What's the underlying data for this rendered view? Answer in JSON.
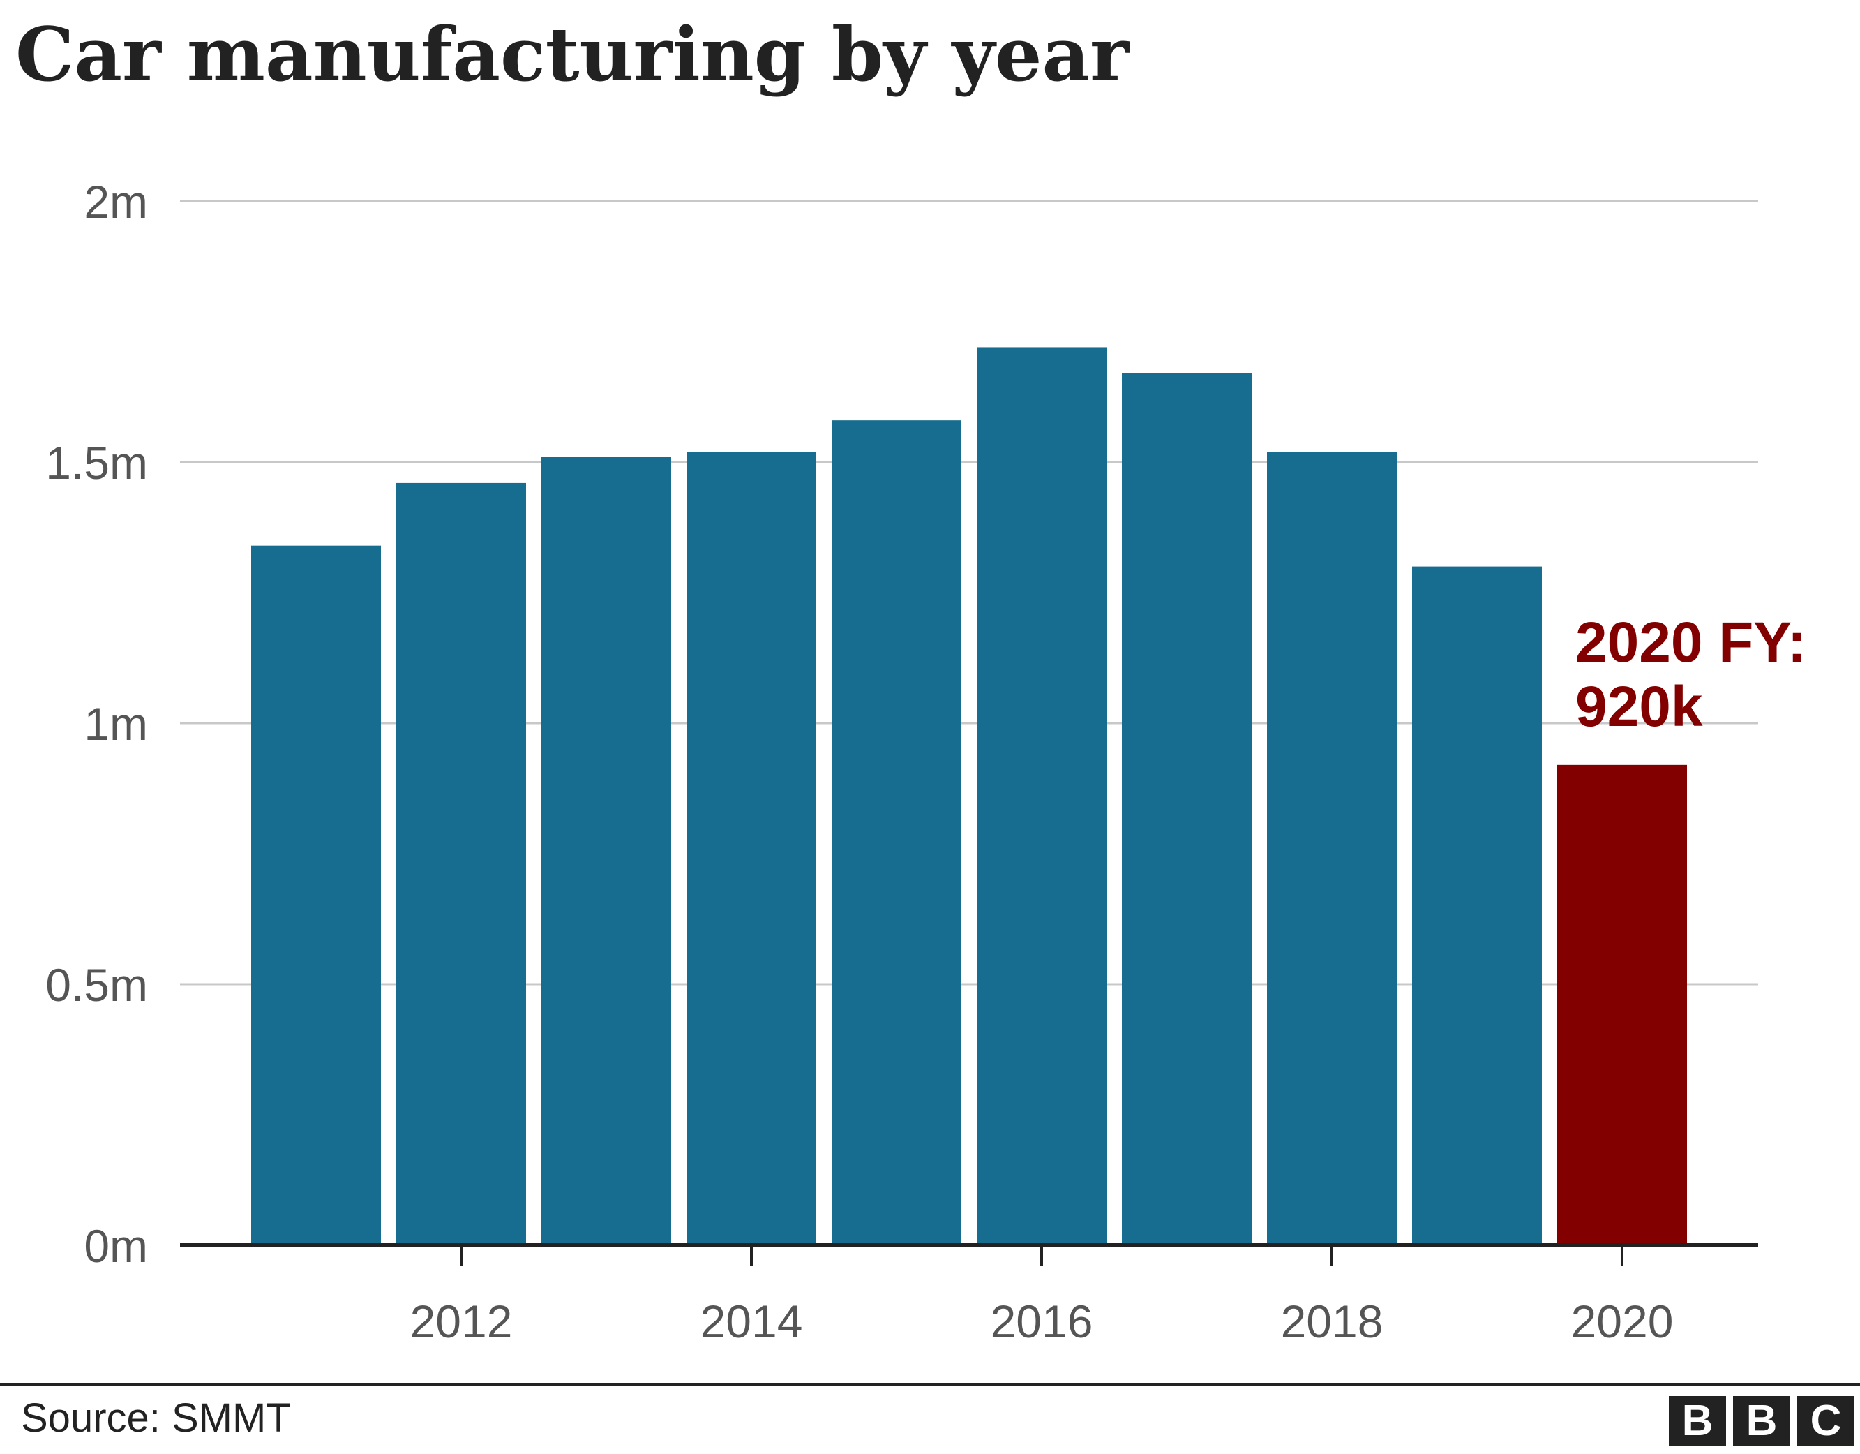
{
  "title": "Car manufacturing by year",
  "source": "Source: SMMT",
  "logo": [
    "B",
    "B",
    "C"
  ],
  "colors": {
    "bar": "#176d8f",
    "highlight": "#830000",
    "grid": "#c8c8c8",
    "axis": "#222222",
    "tick_text": "#555555"
  },
  "annotation": {
    "line1": "2020 FY:",
    "line2": "920k"
  },
  "chart_data": {
    "type": "bar",
    "title": "Car manufacturing by year",
    "xlabel": "",
    "ylabel": "",
    "categories": [
      "2011",
      "2012",
      "2013",
      "2014",
      "2015",
      "2016",
      "2017",
      "2018",
      "2019",
      "2020"
    ],
    "values": [
      1340000,
      1460000,
      1510000,
      1520000,
      1580000,
      1720000,
      1670000,
      1520000,
      1300000,
      920000
    ],
    "highlight_category": "2020",
    "ylim": [
      0,
      2000000
    ],
    "yticks": [
      0,
      500000,
      1000000,
      1500000,
      2000000
    ],
    "ytick_labels": [
      "0m",
      "0.5m",
      "1m",
      "1.5m",
      "2m"
    ],
    "xticks": [
      "2012",
      "2014",
      "2016",
      "2018",
      "2020"
    ],
    "grid": true,
    "legend": "none"
  }
}
